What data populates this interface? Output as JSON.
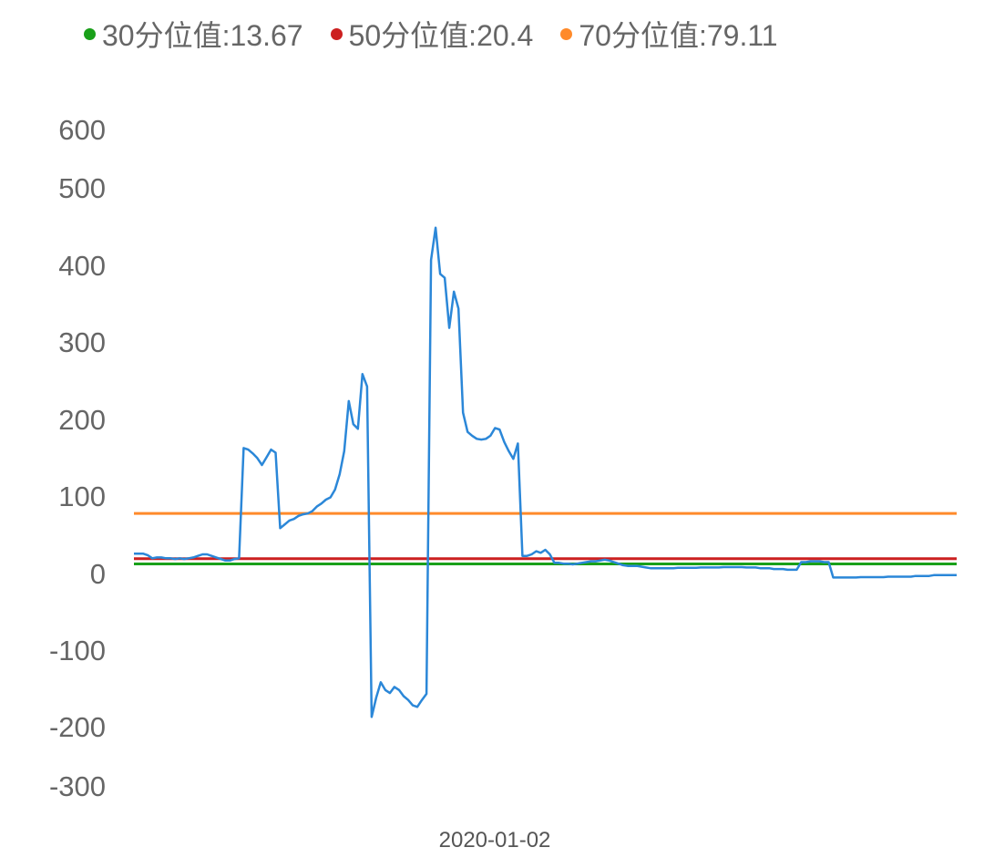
{
  "legend": [
    {
      "label": "30分位值:13.67",
      "color": "#1aa01a"
    },
    {
      "label": "50分位值:20.4",
      "color": "#cc2020"
    },
    {
      "label": "70分位值:79.11",
      "color": "#ff8a2a"
    }
  ],
  "chart_data": {
    "type": "line",
    "title": "",
    "xlabel": "",
    "ylabel": "",
    "x_tick_labels": [
      "2020-01-02"
    ],
    "y_tick_labels": [
      "600",
      "500",
      "400",
      "300",
      "200",
      "100",
      "0",
      "-100",
      "-200",
      "-300"
    ],
    "ylim": [
      -300,
      600
    ],
    "grid": false,
    "legend_position": "top",
    "reference_lines": [
      {
        "name": "30分位值",
        "value": 13.67,
        "color": "#1aa01a"
      },
      {
        "name": "50分位值",
        "value": 20.4,
        "color": "#cc2020"
      },
      {
        "name": "70分位值",
        "value": 79.11,
        "color": "#ff8a2a"
      }
    ],
    "series": [
      {
        "color": "#2b87d8",
        "values": [
          27,
          27,
          27,
          25,
          21,
          22,
          22,
          21,
          21,
          20,
          21,
          20,
          21,
          22,
          24,
          26,
          26,
          24,
          22,
          20,
          18,
          18,
          20,
          21,
          164,
          162,
          157,
          151,
          142,
          152,
          162,
          158,
          60,
          65,
          70,
          72,
          76,
          78,
          79,
          82,
          88,
          92,
          97,
          100,
          110,
          130,
          160,
          225,
          195,
          189,
          260,
          244,
          -185,
          -160,
          -140,
          -150,
          -154,
          -146,
          -150,
          -158,
          -163,
          -170,
          -172,
          -163,
          -155,
          408,
          450,
          390,
          385,
          320,
          367,
          345,
          210,
          185,
          180,
          176,
          175,
          176,
          180,
          190,
          188,
          172,
          160,
          150,
          170,
          24,
          24,
          26,
          30,
          28,
          32,
          26,
          15,
          15,
          14,
          14,
          13,
          14,
          15,
          16,
          17,
          17,
          18,
          19,
          18,
          16,
          14,
          12,
          11,
          11,
          11,
          10,
          9,
          8,
          8,
          8,
          8,
          8,
          8,
          8.5,
          8.5,
          8.5,
          8.5,
          8.5,
          9,
          9,
          9,
          9,
          9,
          9.5,
          9.5,
          9.5,
          9.5,
          9.5,
          9,
          9,
          9,
          8,
          8,
          8,
          7,
          7,
          7,
          6,
          6,
          6,
          16,
          16,
          17,
          17,
          17,
          16,
          16,
          -4,
          -4,
          -4,
          -4,
          -4,
          -4,
          -3.5,
          -3.5,
          -3.5,
          -3.5,
          -3.5,
          -3.5,
          -3,
          -3,
          -3,
          -3,
          -3,
          -3,
          -2,
          -2,
          -2,
          -2,
          -1,
          -1,
          -1,
          -1,
          -1,
          -1
        ]
      }
    ]
  }
}
